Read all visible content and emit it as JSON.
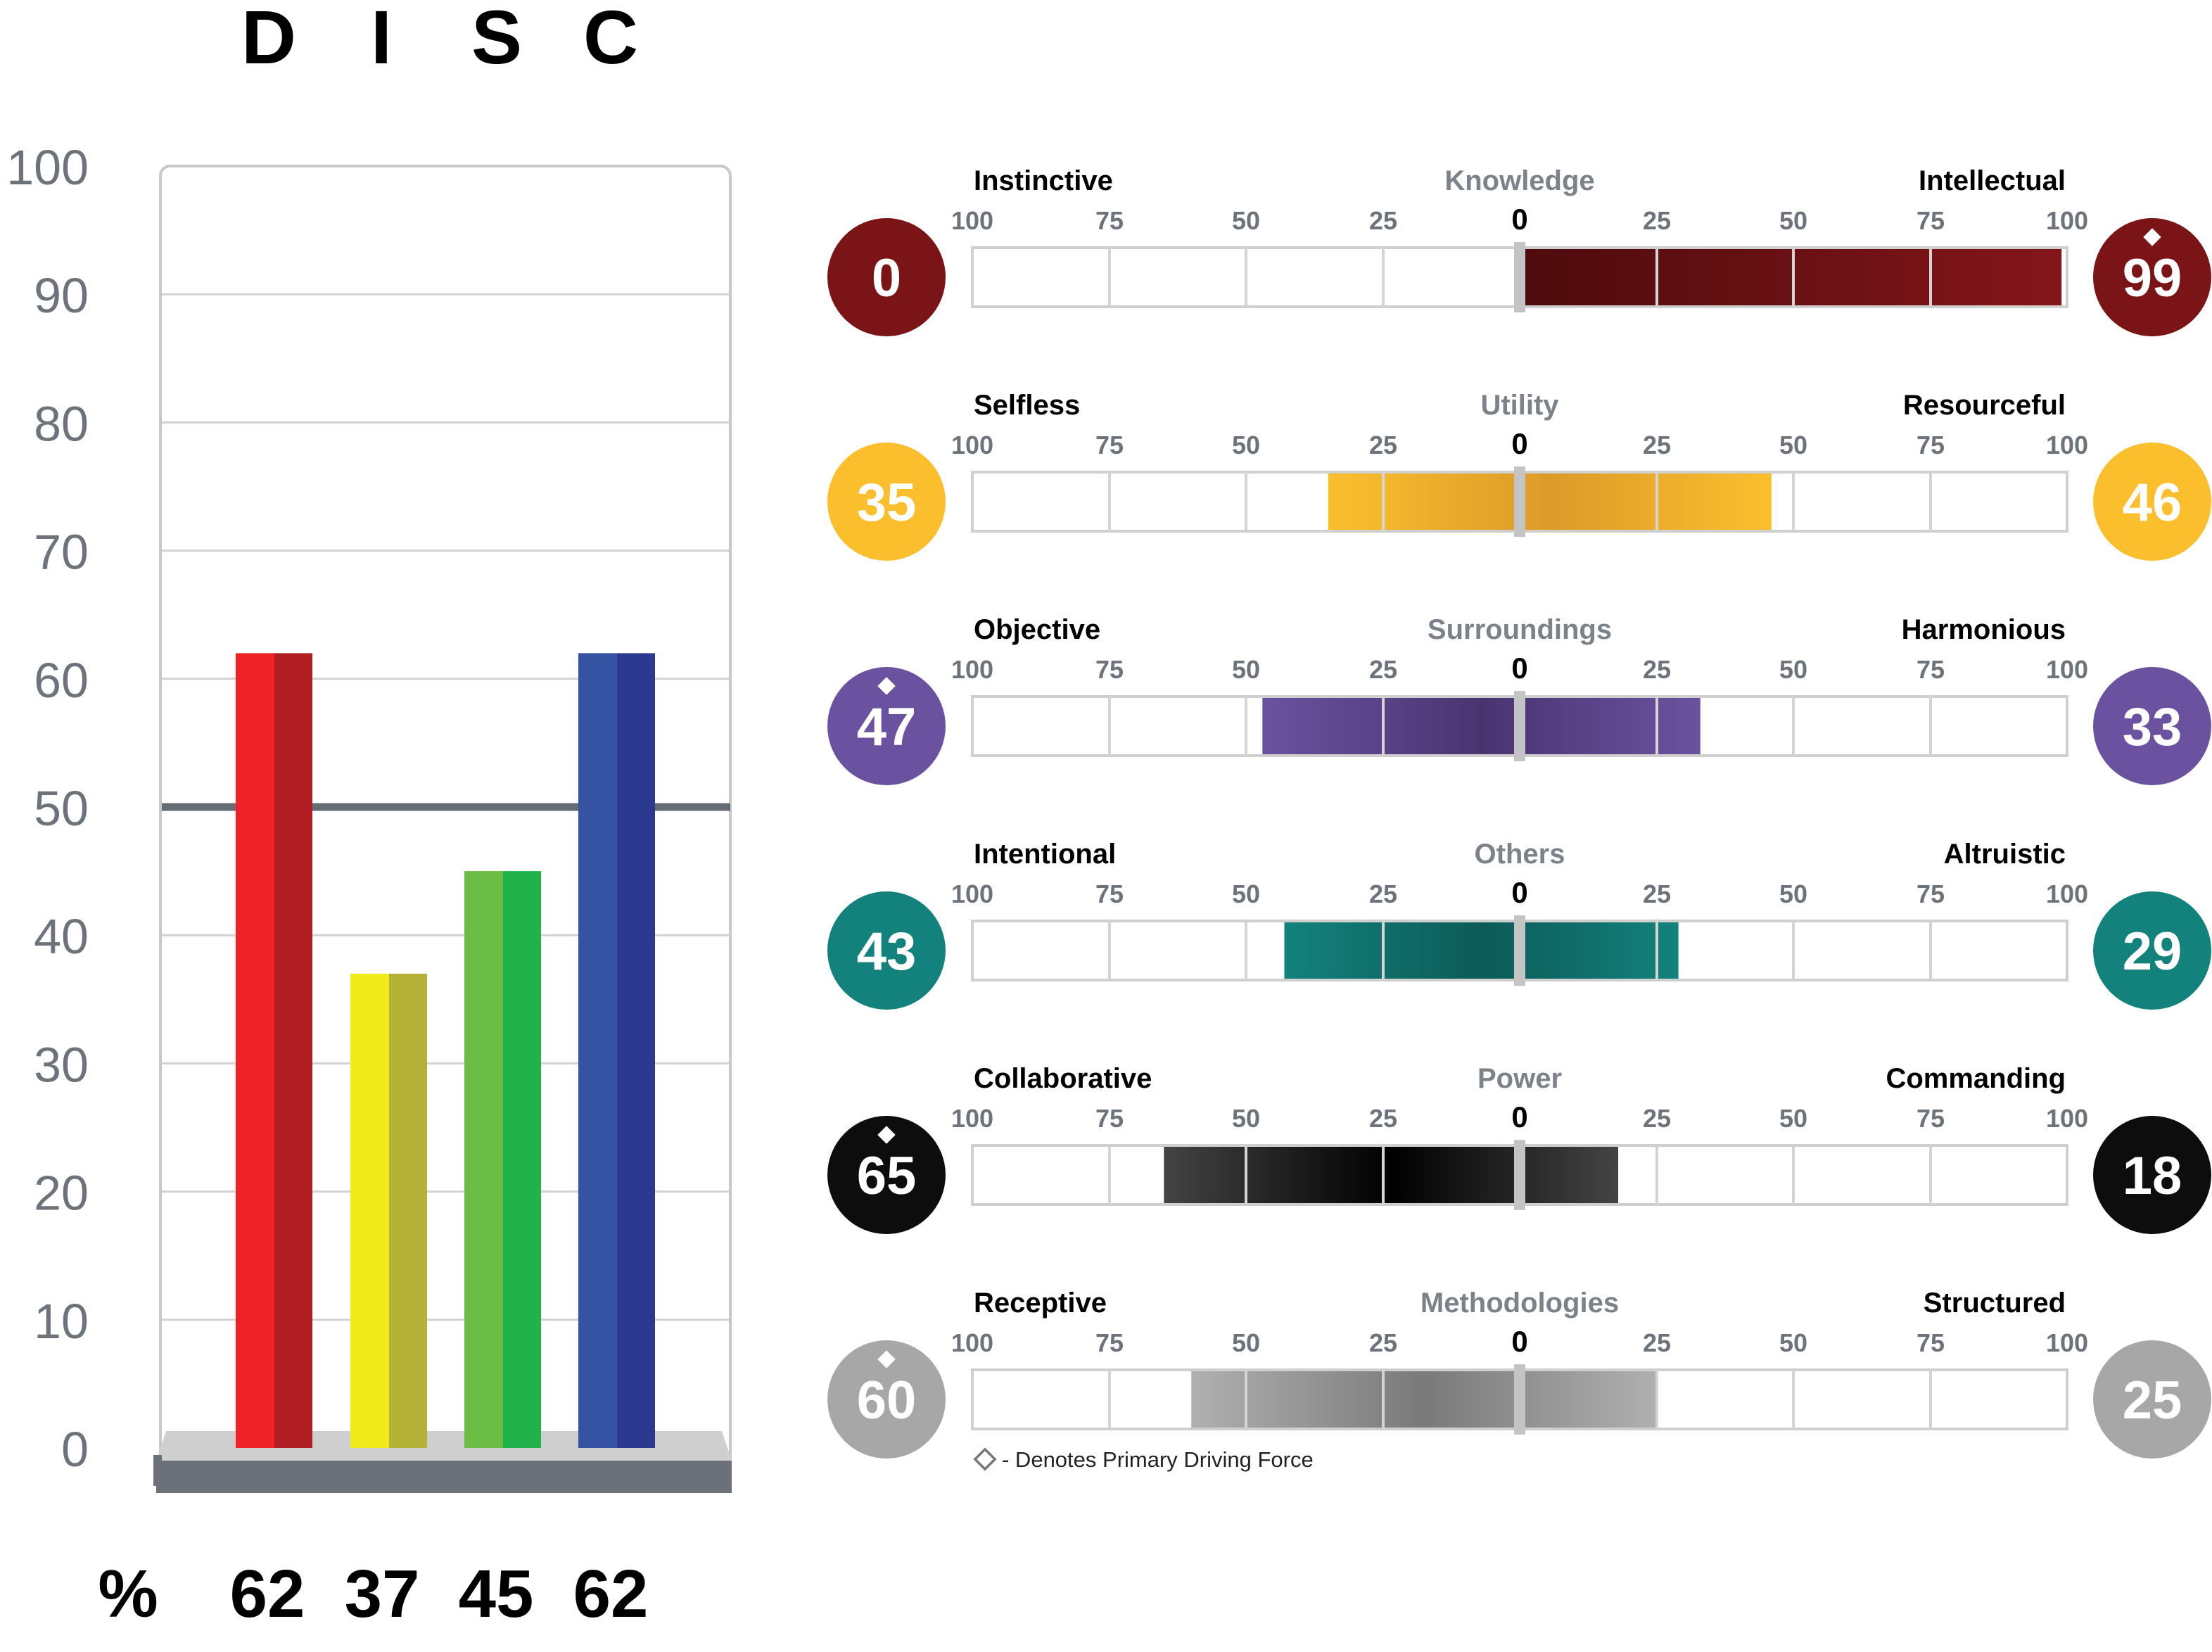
{
  "disc": {
    "letters": [
      "D",
      "I",
      "S",
      "C"
    ],
    "percent_symbol": "%",
    "axis_ticks": [
      0,
      10,
      20,
      30,
      40,
      50,
      60,
      70,
      80,
      90,
      100
    ],
    "colors": {
      "D": [
        "#ee2227",
        "#b01e24"
      ],
      "I": [
        "#f2eb1c",
        "#b3b237"
      ],
      "S": [
        "#6cbd45",
        "#21b24b"
      ],
      "C": [
        "#3652a3",
        "#2b3990"
      ]
    }
  },
  "chart_data": [
    {
      "type": "bar",
      "categories": [
        "D",
        "I",
        "S",
        "C"
      ],
      "values": [
        62,
        37,
        45,
        62
      ],
      "title": "",
      "xlabel": "",
      "ylabel": "",
      "ylim": [
        0,
        100
      ],
      "reference_line": 50,
      "grid": true
    },
    {
      "type": "bar",
      "orientation": "horizontal-diverging",
      "scale_labels": [
        "100",
        "75",
        "50",
        "25",
        "0",
        "25",
        "50",
        "75",
        "100"
      ],
      "rows": [
        {
          "name": "Knowledge",
          "left_label": "Instinctive",
          "right_label": "Intellectual",
          "left_value": 0,
          "right_value": 99,
          "primary": "right",
          "color": "#7a1416",
          "gradient": [
            "#4e0b0d",
            "#84161a"
          ]
        },
        {
          "name": "Utility",
          "left_label": "Selfless",
          "right_label": "Resourceful",
          "left_value": 35,
          "right_value": 46,
          "primary": "",
          "color": "#fbbf2d",
          "gradient": [
            "#fbbf2d",
            "#dc9b29",
            "#fbbf2d"
          ]
        },
        {
          "name": "Surroundings",
          "left_label": "Objective",
          "right_label": "Harmonious",
          "left_value": 47,
          "right_value": 33,
          "primary": "left",
          "color": "#6b52a0",
          "gradient": [
            "#6b52a0",
            "#4a3470",
            "#6b52a0"
          ]
        },
        {
          "name": "Others",
          "left_label": "Intentional",
          "right_label": "Altruistic",
          "left_value": 43,
          "right_value": 29,
          "primary": "",
          "color": "#13827c",
          "gradient": [
            "#13827c",
            "#0c5b58",
            "#13827c"
          ]
        },
        {
          "name": "Power",
          "left_label": "Collaborative",
          "right_label": "Commanding",
          "left_value": 65,
          "right_value": 18,
          "primary": "left",
          "color": "#0d0d0d",
          "gradient": [
            "#444444",
            "#000000",
            "#444444"
          ]
        },
        {
          "name": "Methodologies",
          "left_label": "Receptive",
          "right_label": "Structured",
          "left_value": 60,
          "right_value": 25,
          "primary": "left",
          "color": "#a7a7a7",
          "gradient": [
            "#b0b0b0",
            "#7a7a7a",
            "#b0b0b0"
          ]
        }
      ],
      "legend": "- Denotes Primary Driving Force"
    }
  ]
}
